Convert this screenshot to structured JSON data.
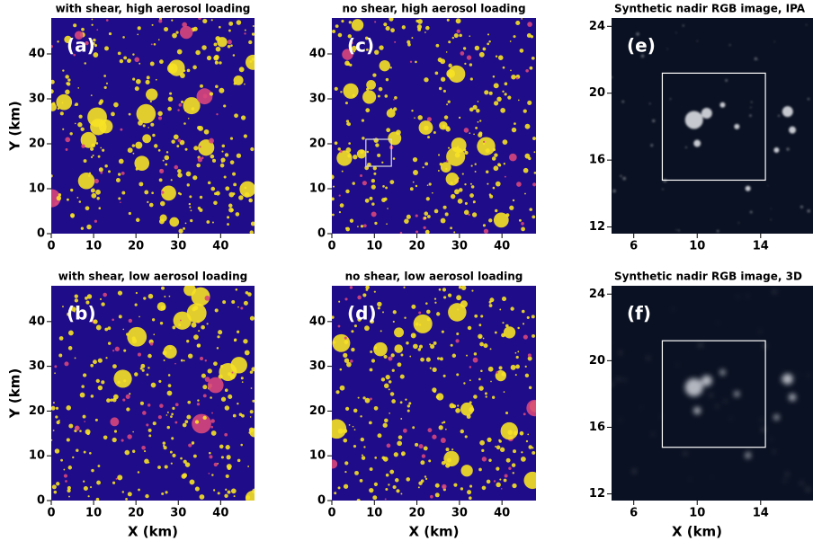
{
  "chart_data": [
    {
      "type": "image",
      "title": "with shear, high aerosol loading",
      "panel_label": "(a)",
      "background": "#1f0c89",
      "color": "#f7e225",
      "xlim": [
        0,
        48
      ],
      "ylim": [
        0,
        48
      ],
      "xticks": [
        0,
        10,
        20,
        30,
        40
      ],
      "yticks": [
        0,
        10,
        20,
        30,
        40
      ],
      "ylabel": "Y (km)"
    },
    {
      "type": "image",
      "title": "no shear, high aerosol loading",
      "panel_label": "(c)",
      "background": "#1f0c89",
      "color": "#f7e225",
      "xlim": [
        0,
        48
      ],
      "ylim": [
        0,
        48
      ],
      "xticks": [
        0,
        10,
        20,
        30,
        40
      ],
      "yticks": [
        0,
        10,
        20,
        30,
        40
      ]
    },
    {
      "type": "image",
      "title": "Synthetic nadir RGB image, IPA",
      "panel_label": "(e)",
      "background": "#0a1122",
      "color": "#e8eaee",
      "xlim": [
        4.6,
        17.3
      ],
      "ylim": [
        11.6,
        24.5
      ],
      "xticks": [
        6,
        10,
        14
      ],
      "yticks": [
        12,
        16,
        20,
        24
      ]
    },
    {
      "type": "image",
      "title": "with shear, low aerosol loading",
      "panel_label": "(b)",
      "background": "#1f0c89",
      "color": "#f7e225",
      "xlim": [
        0,
        48
      ],
      "ylim": [
        0,
        48
      ],
      "xticks": [
        0,
        10,
        20,
        30,
        40
      ],
      "yticks": [
        0,
        10,
        20,
        30,
        40
      ],
      "xlabel": "X (km)",
      "ylabel": "Y (km)"
    },
    {
      "type": "image",
      "title": "no shear, low aerosol loading",
      "panel_label": "(d)",
      "background": "#1f0c89",
      "color": "#f7e225",
      "xlim": [
        0,
        48
      ],
      "ylim": [
        0,
        48
      ],
      "xticks": [
        0,
        10,
        20,
        30,
        40
      ],
      "yticks": [
        0,
        10,
        20,
        30,
        40
      ],
      "xlabel": "X (km)"
    },
    {
      "type": "image",
      "title": "Synthetic nadir RGB image, 3D",
      "panel_label": "(f)",
      "background": "#0a1122",
      "color": "#d0d4da",
      "xlim": [
        4.6,
        17.3
      ],
      "ylim": [
        11.6,
        24.5
      ],
      "xticks": [
        6,
        10,
        14
      ],
      "yticks": [
        12,
        16,
        20,
        24
      ],
      "xlabel": "X (km)"
    }
  ]
}
